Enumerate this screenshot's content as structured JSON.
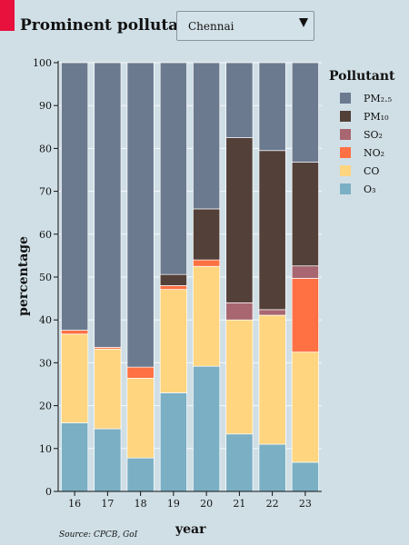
{
  "header": {
    "label": "Prominent pollutant:",
    "accent_color": "#e8103c",
    "select": {
      "selected": "Chennai"
    }
  },
  "source": "Source: CPCB, GoI",
  "chart_data": {
    "type": "bar",
    "stacked": true,
    "categories": [
      "16",
      "17",
      "18",
      "19",
      "20",
      "21",
      "22",
      "23"
    ],
    "xlabel": "year",
    "ylabel": "percentage",
    "ylim": [
      0,
      100
    ],
    "yticks": [
      0,
      10,
      20,
      30,
      40,
      50,
      60,
      70,
      80,
      90,
      100
    ],
    "grid": true,
    "legend": {
      "title": "Pollutant",
      "position": "right"
    },
    "series": [
      {
        "name": "O₃",
        "color": "#7aafc4",
        "values": [
          16,
          14.6,
          7.8,
          23,
          29.2,
          13.4,
          11,
          6.8
        ]
      },
      {
        "name": "CO",
        "color": "#ffd580",
        "values": [
          20.7,
          18.6,
          18.6,
          24.1,
          23.3,
          26.6,
          30.1,
          25.7
        ]
      },
      {
        "name": "NO₂",
        "color": "#ff7043",
        "values": [
          0.9,
          0.4,
          2.6,
          0.9,
          1.5,
          0,
          0,
          17.2
        ]
      },
      {
        "name": "SO₂",
        "color": "#a86671",
        "values": [
          0,
          0,
          0,
          0,
          0,
          4,
          1.3,
          2.9
        ]
      },
      {
        "name": "PM₁₀",
        "color": "#524039",
        "values": [
          0,
          0,
          0,
          2.6,
          11.9,
          38.5,
          37.1,
          24.2
        ]
      },
      {
        "name": "PM₂.₅",
        "color": "#6b7a8f",
        "values": [
          62.4,
          66.4,
          71,
          49.4,
          34.1,
          17.5,
          20.5,
          23.2
        ]
      }
    ]
  }
}
